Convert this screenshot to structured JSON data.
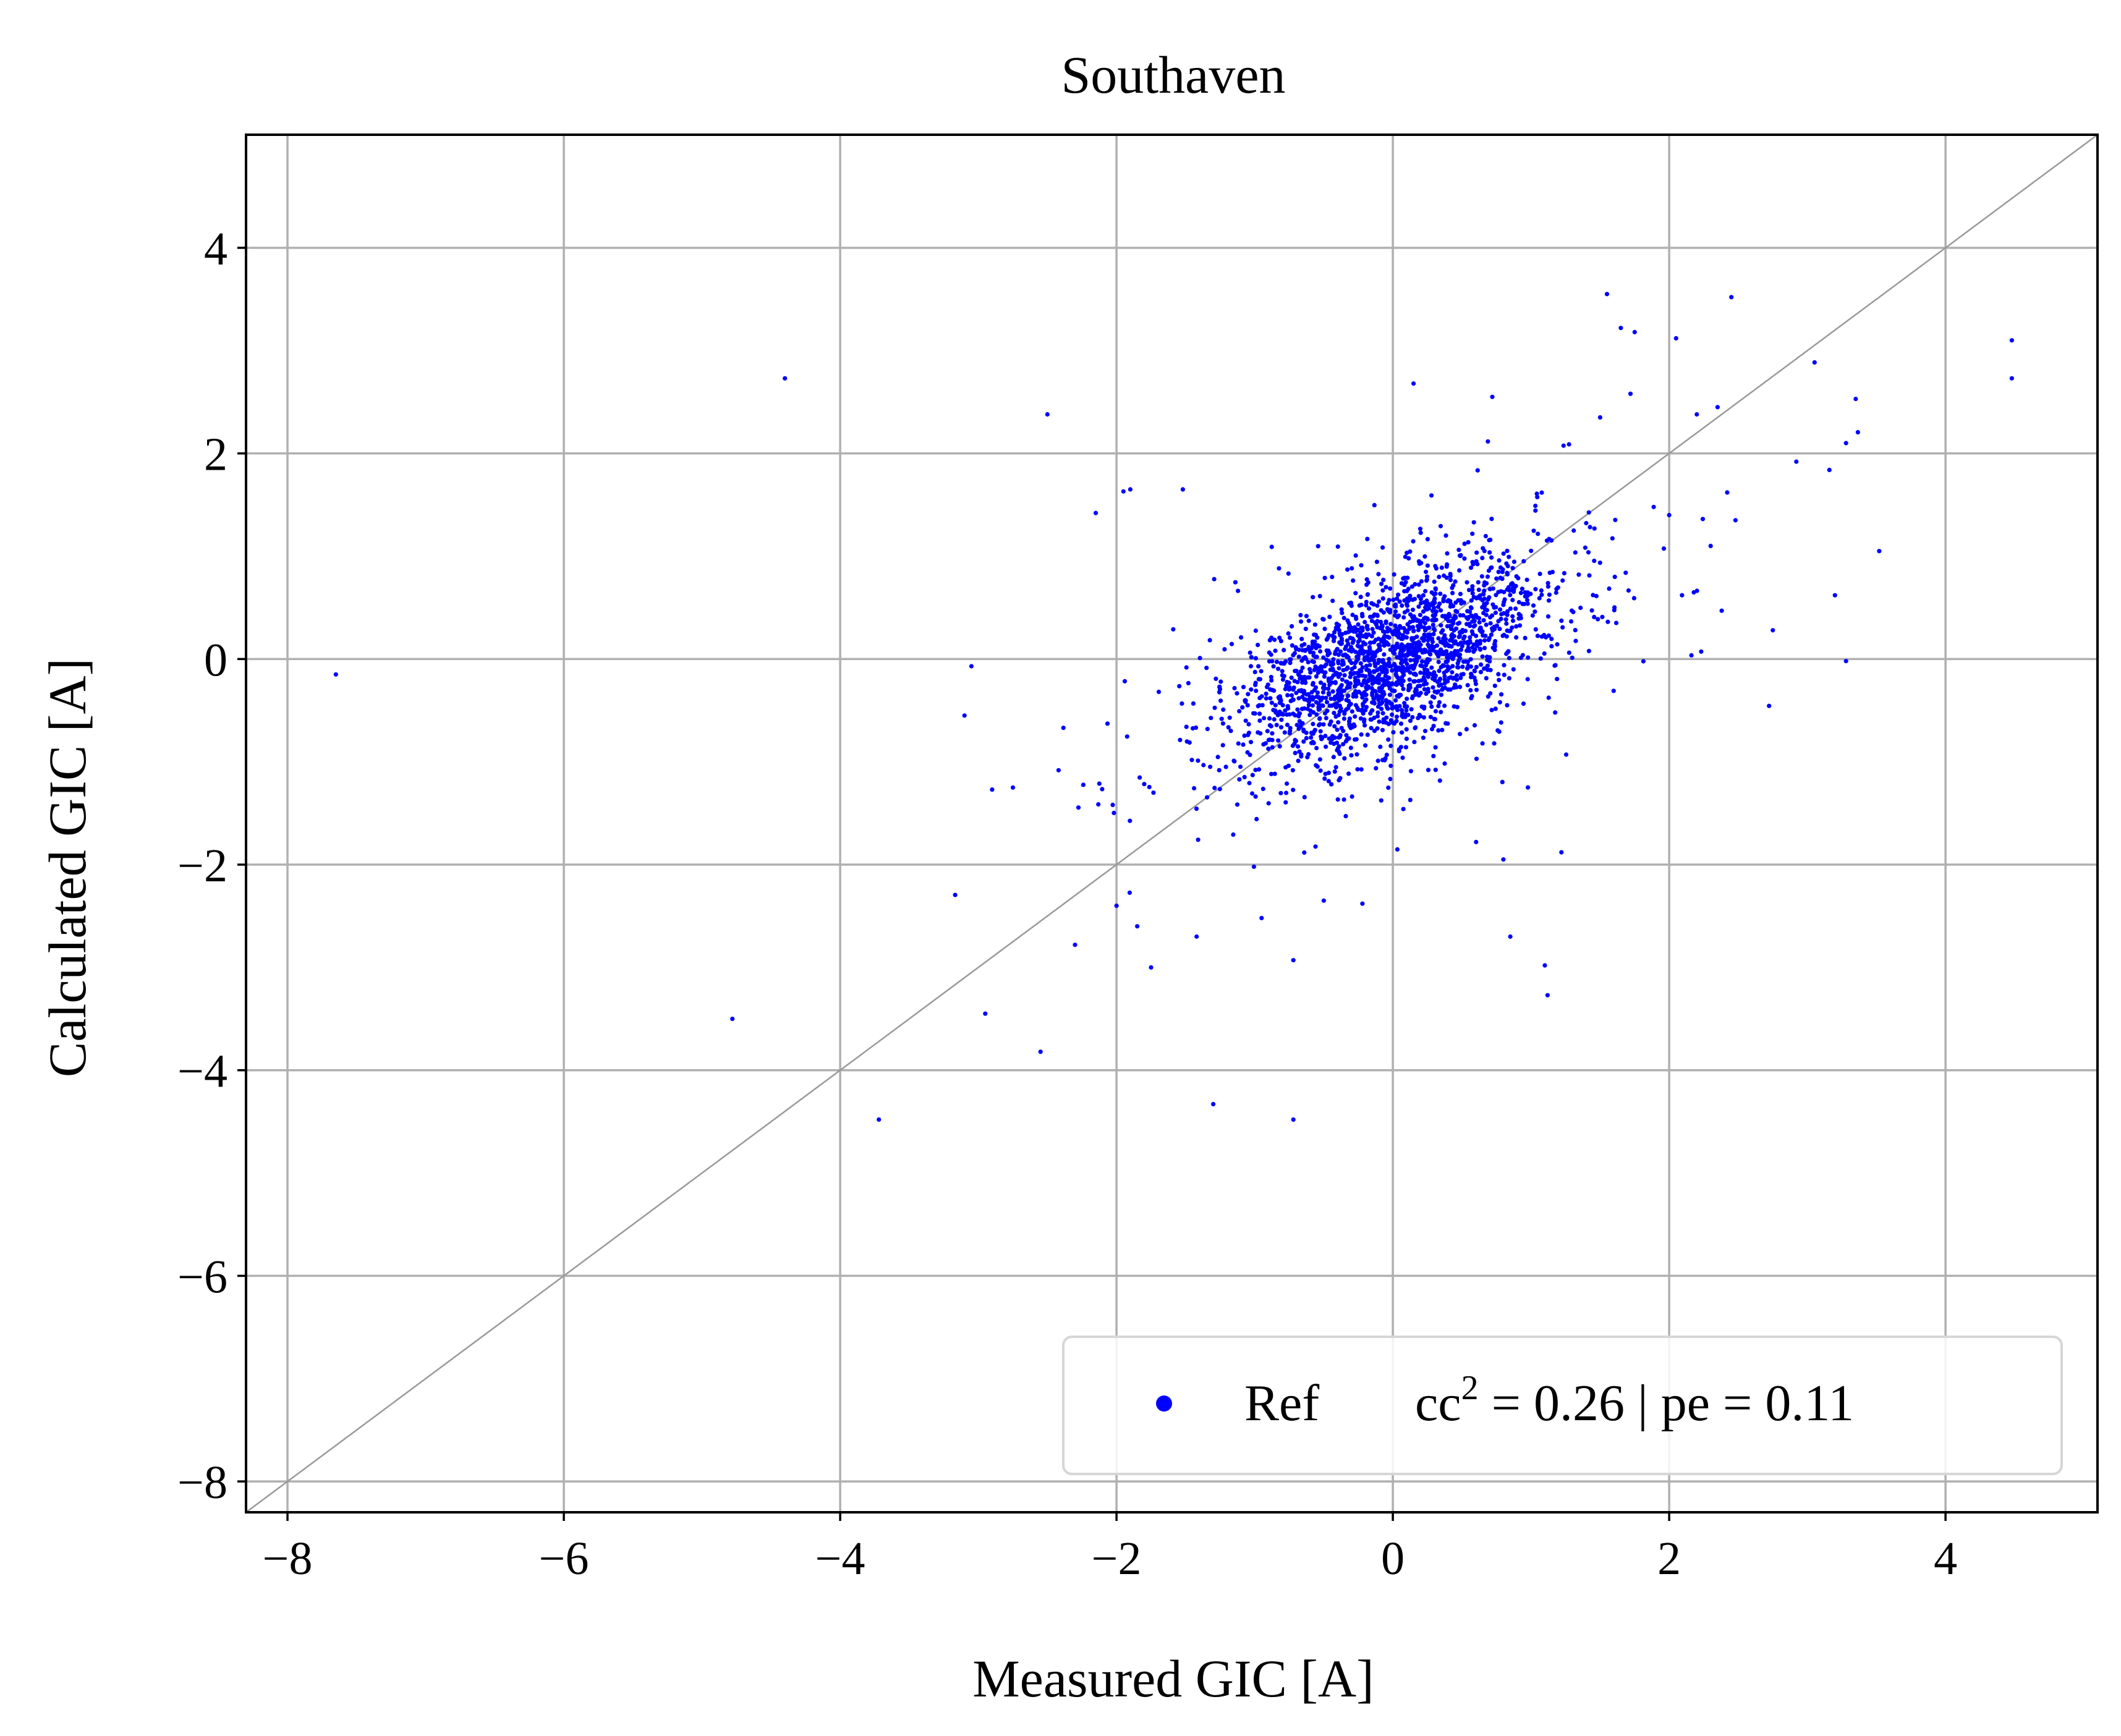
{
  "chart_data": {
    "type": "scatter",
    "title": "Southaven",
    "xlabel": "Measured GIC [A]",
    "ylabel": "Calculated GIC [A]",
    "xlim": [
      -8.3,
      5.1
    ],
    "ylim": [
      -8.3,
      5.1
    ],
    "xticks": [
      -8,
      -6,
      -4,
      -2,
      0,
      2,
      4
    ],
    "yticks": [
      -8,
      -6,
      -4,
      -2,
      0,
      2,
      4
    ],
    "xtick_labels": [
      "−8",
      "−6",
      "−4",
      "−2",
      "0",
      "2",
      "4"
    ],
    "ytick_labels": [
      "−8",
      "−6",
      "−4",
      "−2",
      "0",
      "2",
      "4"
    ],
    "grid": true,
    "reference_line": {
      "type": "y=x",
      "color": "#999999"
    },
    "legend": {
      "placement": "lower-right",
      "marker_label": "Ref",
      "stats": {
        "cc_squared": "0.26",
        "pe": "0.11"
      },
      "text": "cc² = 0.26 | pe = 0.11"
    },
    "series": [
      {
        "name": "Ref",
        "color": "#0000ff",
        "outliers": [
          [
            -7.65,
            -0.15
          ],
          [
            -4.4,
            2.73
          ],
          [
            -4.78,
            -3.5
          ],
          [
            -3.72,
            -4.48
          ],
          [
            -2.95,
            -3.45
          ],
          [
            -2.55,
            -3.82
          ],
          [
            -2.5,
            2.38
          ],
          [
            -2.3,
            -2.78
          ],
          [
            -2.15,
            1.42
          ],
          [
            -1.95,
            1.63
          ],
          [
            -1.9,
            1.65
          ],
          [
            -1.52,
            1.65
          ],
          [
            -1.3,
            -4.33
          ],
          [
            -0.72,
            -4.48
          ],
          [
            -0.72,
            -2.93
          ],
          [
            -0.95,
            -2.52
          ],
          [
            -1.42,
            -2.7
          ],
          [
            -1.75,
            -3.0
          ],
          [
            -1.85,
            -2.6
          ],
          [
            -2.0,
            -2.4
          ],
          [
            0.15,
            2.68
          ],
          [
            0.72,
            2.55
          ],
          [
            1.55,
            3.55
          ],
          [
            1.65,
            3.22
          ],
          [
            1.75,
            3.18
          ],
          [
            2.05,
            3.12
          ],
          [
            2.45,
            3.52
          ],
          [
            4.48,
            3.1
          ],
          [
            4.48,
            2.73
          ],
          [
            3.35,
            2.53
          ],
          [
            3.28,
            2.1
          ],
          [
            2.92,
            1.92
          ],
          [
            3.52,
            1.05
          ],
          [
            3.2,
            0.62
          ],
          [
            3.28,
            -0.02
          ],
          [
            2.75,
            0.28
          ],
          [
            2.38,
            0.47
          ],
          [
            1.12,
            -3.27
          ],
          [
            0.85,
            -2.7
          ],
          [
            0.8,
            -1.95
          ],
          [
            1.22,
            -1.88
          ],
          [
            1.1,
            -2.98
          ],
          [
            -0.22,
            -2.38
          ],
          [
            -0.5,
            -2.35
          ],
          [
            -2.75,
            -1.25
          ],
          [
            -2.9,
            -1.27
          ],
          [
            -3.1,
            -0.55
          ],
          [
            -3.05,
            -0.07
          ],
          [
            1.5,
            2.35
          ],
          [
            1.72,
            2.58
          ],
          [
            2.35,
            2.45
          ],
          [
            2.2,
            2.38
          ],
          [
            2.48,
            1.35
          ],
          [
            2.42,
            1.62
          ],
          [
            2.3,
            1.1
          ],
          [
            2.0,
            1.4
          ]
        ],
        "cluster": {
          "n_points": 2100,
          "center": [
            0.0,
            0.0
          ],
          "sd_measured": 0.55,
          "sd_calculated": 0.48,
          "correlation": 0.55
        }
      }
    ]
  }
}
